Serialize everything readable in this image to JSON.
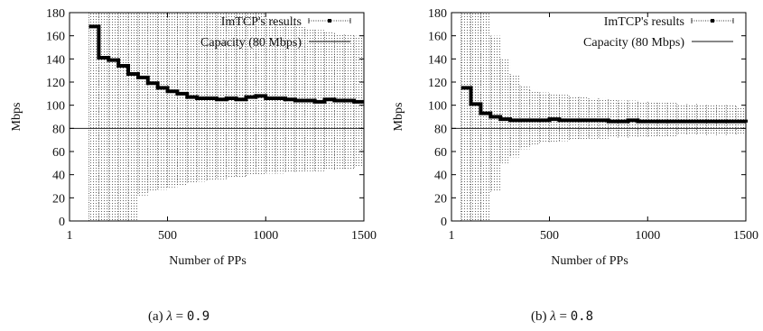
{
  "captions": [
    {
      "prefix": "(a) ",
      "symbol": "λ",
      "eq": " = ",
      "value": "0.9"
    },
    {
      "prefix": "(b) ",
      "symbol": "λ",
      "eq": " = ",
      "value": "0.8"
    }
  ],
  "chart_data": [
    {
      "type": "line",
      "xlabel": "Number of PPs",
      "ylabel": "Mbps",
      "xlim": [
        1,
        1500
      ],
      "ylim": [
        0,
        180
      ],
      "xticks": [
        1,
        500,
        1000,
        1500
      ],
      "yticks": [
        0,
        20,
        40,
        60,
        80,
        100,
        120,
        140,
        160,
        180
      ],
      "legend_position": "top-right",
      "series": [
        {
          "name": "ImTCP's results",
          "style": "step-with-errorbars",
          "x": [
            100,
            150,
            200,
            250,
            300,
            350,
            400,
            450,
            500,
            550,
            600,
            650,
            700,
            750,
            800,
            850,
            900,
            950,
            1000,
            1050,
            1100,
            1150,
            1200,
            1250,
            1300,
            1350,
            1400,
            1450,
            1500
          ],
          "y": [
            168,
            141,
            139,
            134,
            127,
            124,
            119,
            115,
            112,
            110,
            107,
            106,
            106,
            105,
            106,
            105,
            107,
            108,
            106,
            106,
            105,
            104,
            104,
            103,
            105,
            104,
            104,
            103,
            103
          ],
          "lower": [
            0,
            0,
            0,
            0,
            0,
            22,
            25,
            27,
            29,
            31,
            32,
            34,
            35,
            36,
            37,
            38,
            39,
            40,
            41,
            41,
            42,
            42,
            43,
            43,
            44,
            44,
            45,
            46,
            47
          ],
          "upper": [
            180,
            180,
            180,
            180,
            180,
            180,
            180,
            180,
            180,
            180,
            180,
            180,
            180,
            180,
            180,
            180,
            180,
            180,
            175,
            172,
            170,
            168,
            166,
            165,
            163,
            162,
            161,
            160,
            159
          ]
        },
        {
          "name": "Capacity (80 Mbps)",
          "style": "line",
          "x": [
            1,
            1500
          ],
          "y": [
            80,
            80
          ]
        }
      ]
    },
    {
      "type": "line",
      "xlabel": "Number of PPs",
      "ylabel": "Mbps",
      "xlim": [
        1,
        1500
      ],
      "ylim": [
        0,
        180
      ],
      "xticks": [
        1,
        500,
        1000,
        1500
      ],
      "yticks": [
        0,
        20,
        40,
        60,
        80,
        100,
        120,
        140,
        160,
        180
      ],
      "legend_position": "top-right",
      "series": [
        {
          "name": "ImTCP's results",
          "style": "step-with-errorbars",
          "x": [
            50,
            100,
            150,
            200,
            250,
            300,
            350,
            400,
            450,
            500,
            550,
            600,
            650,
            700,
            750,
            800,
            850,
            900,
            950,
            1000,
            1050,
            1100,
            1150,
            1200,
            1250,
            1300,
            1350,
            1400,
            1450,
            1500
          ],
          "y": [
            115,
            101,
            93,
            90,
            88,
            87,
            87,
            87,
            87,
            88,
            87,
            87,
            87,
            87,
            87,
            86,
            86,
            87,
            86,
            86,
            86,
            86,
            86,
            86,
            86,
            86,
            86,
            86,
            86,
            85
          ],
          "lower": [
            0,
            0,
            0,
            25,
            50,
            55,
            62,
            65,
            67,
            68,
            69,
            70,
            70,
            71,
            71,
            72,
            72,
            72,
            73,
            73,
            73,
            73,
            74,
            74,
            74,
            74,
            74,
            74,
            74,
            74
          ],
          "upper": [
            180,
            180,
            180,
            160,
            140,
            127,
            117,
            113,
            111,
            110,
            109,
            108,
            107,
            106,
            106,
            105,
            104,
            104,
            103,
            103,
            102,
            102,
            101,
            101,
            101,
            100,
            100,
            100,
            99,
            99
          ]
        },
        {
          "name": "Capacity (80 Mbps)",
          "style": "line",
          "x": [
            1,
            1500
          ],
          "y": [
            80,
            80
          ]
        }
      ]
    }
  ]
}
